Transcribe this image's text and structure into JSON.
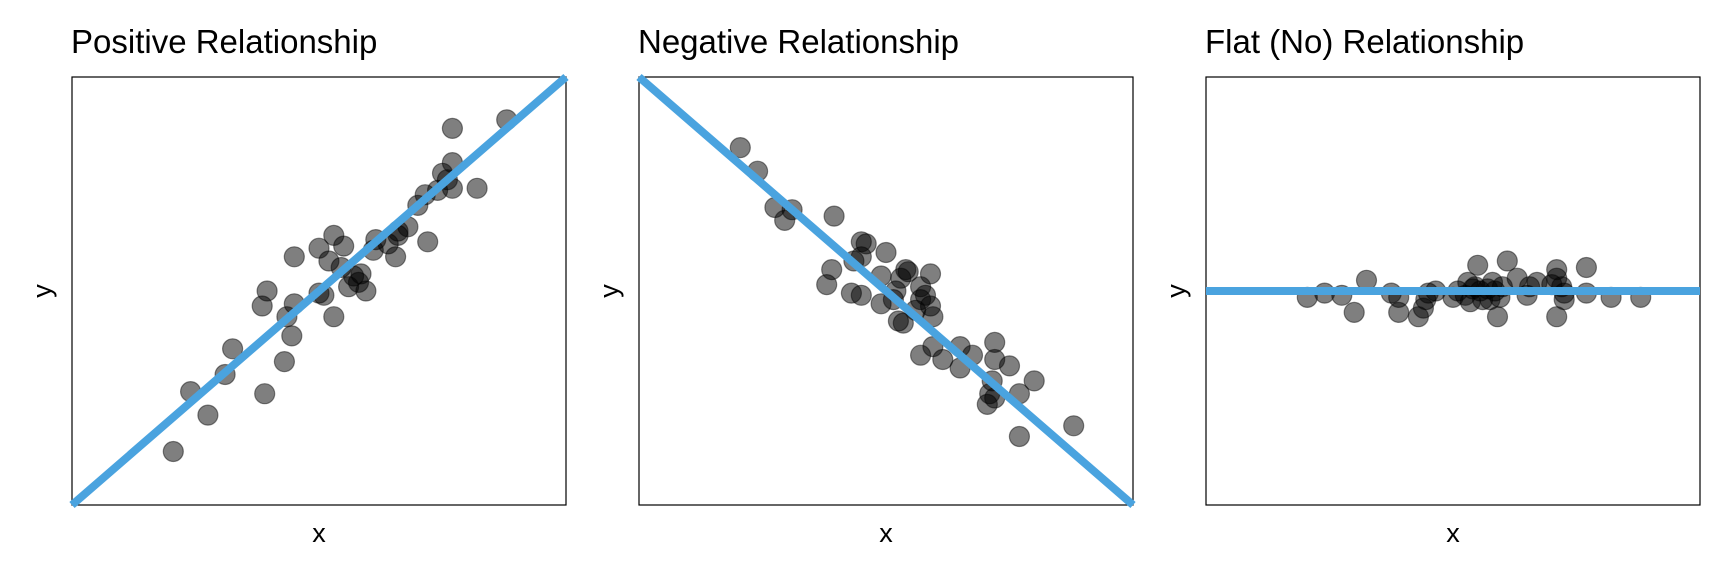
{
  "style": {
    "point_color": "#000000",
    "point_opacity": 0.5,
    "fit_line_color": "#4aa3df"
  },
  "chart_data": [
    {
      "type": "scatter",
      "title": "Positive Relationship",
      "xlabel": "x",
      "ylabel": "y",
      "xlim": [
        0,
        100
      ],
      "ylim": [
        0,
        100
      ],
      "grid": false,
      "axis_ticks": false,
      "fit_line": {
        "x": [
          0,
          100
        ],
        "y": [
          0,
          100
        ]
      },
      "points": [
        {
          "x": 20.5,
          "y": 12.5
        },
        {
          "x": 27.5,
          "y": 21
        },
        {
          "x": 24,
          "y": 26.5
        },
        {
          "x": 31,
          "y": 30.5
        },
        {
          "x": 32.5,
          "y": 36.5
        },
        {
          "x": 39,
          "y": 26
        },
        {
          "x": 43,
          "y": 33.5
        },
        {
          "x": 44.5,
          "y": 39.5
        },
        {
          "x": 43.5,
          "y": 44
        },
        {
          "x": 38.5,
          "y": 46.5
        },
        {
          "x": 39.5,
          "y": 50
        },
        {
          "x": 45,
          "y": 47
        },
        {
          "x": 50,
          "y": 49.5
        },
        {
          "x": 53,
          "y": 44
        },
        {
          "x": 51,
          "y": 49
        },
        {
          "x": 45,
          "y": 58
        },
        {
          "x": 50,
          "y": 60
        },
        {
          "x": 52,
          "y": 57
        },
        {
          "x": 53,
          "y": 63
        },
        {
          "x": 55,
          "y": 60.5
        },
        {
          "x": 57,
          "y": 53.5
        },
        {
          "x": 56,
          "y": 51
        },
        {
          "x": 58,
          "y": 52
        },
        {
          "x": 58.5,
          "y": 54
        },
        {
          "x": 59.5,
          "y": 50
        },
        {
          "x": 54.5,
          "y": 55.5
        },
        {
          "x": 61,
          "y": 59.5
        },
        {
          "x": 61.5,
          "y": 62
        },
        {
          "x": 64,
          "y": 61
        },
        {
          "x": 66,
          "y": 64
        },
        {
          "x": 68,
          "y": 65
        },
        {
          "x": 65.5,
          "y": 58
        },
        {
          "x": 70,
          "y": 70
        },
        {
          "x": 71.5,
          "y": 72.5
        },
        {
          "x": 74,
          "y": 73.5
        },
        {
          "x": 75,
          "y": 77.5
        },
        {
          "x": 76,
          "y": 76
        },
        {
          "x": 72,
          "y": 61.5
        },
        {
          "x": 77,
          "y": 74
        },
        {
          "x": 77,
          "y": 80
        },
        {
          "x": 77,
          "y": 88
        },
        {
          "x": 82,
          "y": 74
        },
        {
          "x": 88,
          "y": 90
        },
        {
          "x": 66,
          "y": 63
        }
      ]
    },
    {
      "type": "scatter",
      "title": "Negative Relationship",
      "xlabel": "x",
      "ylabel": "y",
      "xlim": [
        0,
        100
      ],
      "ylim": [
        0,
        100
      ],
      "grid": false,
      "axis_ticks": false,
      "fit_line": {
        "x": [
          0,
          100
        ],
        "y": [
          100,
          0
        ]
      },
      "points": [
        {
          "x": 20.5,
          "y": 83.5
        },
        {
          "x": 24,
          "y": 78
        },
        {
          "x": 27.5,
          "y": 69.5
        },
        {
          "x": 29.5,
          "y": 66.5
        },
        {
          "x": 31,
          "y": 69
        },
        {
          "x": 39.5,
          "y": 67.5
        },
        {
          "x": 45,
          "y": 61.5
        },
        {
          "x": 46,
          "y": 61
        },
        {
          "x": 50,
          "y": 59
        },
        {
          "x": 45,
          "y": 58
        },
        {
          "x": 39,
          "y": 55
        },
        {
          "x": 43.5,
          "y": 57
        },
        {
          "x": 54,
          "y": 55
        },
        {
          "x": 54.5,
          "y": 54.5
        },
        {
          "x": 59,
          "y": 54
        },
        {
          "x": 38,
          "y": 51.5
        },
        {
          "x": 43,
          "y": 49.5
        },
        {
          "x": 45,
          "y": 49
        },
        {
          "x": 49,
          "y": 53.5
        },
        {
          "x": 53,
          "y": 53
        },
        {
          "x": 52,
          "y": 50
        },
        {
          "x": 57,
          "y": 51
        },
        {
          "x": 49,
          "y": 47
        },
        {
          "x": 51.5,
          "y": 48
        },
        {
          "x": 56,
          "y": 45.5
        },
        {
          "x": 57,
          "y": 48
        },
        {
          "x": 58,
          "y": 49
        },
        {
          "x": 59,
          "y": 46.5
        },
        {
          "x": 53.5,
          "y": 42.5
        },
        {
          "x": 59.5,
          "y": 44
        },
        {
          "x": 52.5,
          "y": 43
        },
        {
          "x": 59.5,
          "y": 37
        },
        {
          "x": 57,
          "y": 35
        },
        {
          "x": 61.5,
          "y": 34
        },
        {
          "x": 65,
          "y": 37
        },
        {
          "x": 67.5,
          "y": 35
        },
        {
          "x": 65,
          "y": 32
        },
        {
          "x": 72,
          "y": 38
        },
        {
          "x": 72,
          "y": 34
        },
        {
          "x": 71.5,
          "y": 29
        },
        {
          "x": 71,
          "y": 26
        },
        {
          "x": 72,
          "y": 25
        },
        {
          "x": 70.5,
          "y": 23.5
        },
        {
          "x": 77,
          "y": 26
        },
        {
          "x": 80,
          "y": 29
        },
        {
          "x": 77,
          "y": 16
        },
        {
          "x": 88,
          "y": 18.5
        },
        {
          "x": 75,
          "y": 32.5
        }
      ]
    },
    {
      "type": "scatter",
      "title": "Flat (No) Relationship",
      "xlabel": "x",
      "ylabel": "y",
      "xlim": [
        0,
        100
      ],
      "ylim": [
        0,
        100
      ],
      "grid": false,
      "axis_ticks": false,
      "fit_line": {
        "x": [
          0,
          100
        ],
        "y": [
          50,
          50
        ]
      },
      "points": [
        {
          "x": 20.5,
          "y": 48.5
        },
        {
          "x": 24,
          "y": 49.5
        },
        {
          "x": 27.5,
          "y": 49
        },
        {
          "x": 30,
          "y": 45
        },
        {
          "x": 32.5,
          "y": 52.5
        },
        {
          "x": 37.5,
          "y": 49.5
        },
        {
          "x": 39,
          "y": 48.5
        },
        {
          "x": 39,
          "y": 45
        },
        {
          "x": 43,
          "y": 44
        },
        {
          "x": 44,
          "y": 46
        },
        {
          "x": 45,
          "y": 49.5
        },
        {
          "x": 46.5,
          "y": 50
        },
        {
          "x": 44.5,
          "y": 48
        },
        {
          "x": 50,
          "y": 48.5
        },
        {
          "x": 51,
          "y": 50
        },
        {
          "x": 52.5,
          "y": 49
        },
        {
          "x": 53,
          "y": 52
        },
        {
          "x": 53.5,
          "y": 47.5
        },
        {
          "x": 54.5,
          "y": 51
        },
        {
          "x": 55,
          "y": 56
        },
        {
          "x": 55.5,
          "y": 50
        },
        {
          "x": 56,
          "y": 48
        },
        {
          "x": 57,
          "y": 50.5
        },
        {
          "x": 57.5,
          "y": 48
        },
        {
          "x": 58,
          "y": 52
        },
        {
          "x": 58.5,
          "y": 50
        },
        {
          "x": 59.5,
          "y": 48.5
        },
        {
          "x": 60,
          "y": 51
        },
        {
          "x": 59,
          "y": 44
        },
        {
          "x": 61,
          "y": 57
        },
        {
          "x": 63,
          "y": 53
        },
        {
          "x": 65,
          "y": 49
        },
        {
          "x": 65.5,
          "y": 51
        },
        {
          "x": 67,
          "y": 52
        },
        {
          "x": 70,
          "y": 51.5
        },
        {
          "x": 71,
          "y": 53
        },
        {
          "x": 72,
          "y": 51
        },
        {
          "x": 72.5,
          "y": 49.5
        },
        {
          "x": 72.5,
          "y": 48
        },
        {
          "x": 71,
          "y": 55
        },
        {
          "x": 71,
          "y": 44
        },
        {
          "x": 77,
          "y": 55.5
        },
        {
          "x": 77,
          "y": 49.5
        },
        {
          "x": 82,
          "y": 48.5
        },
        {
          "x": 88,
          "y": 48.5
        },
        {
          "x": 54,
          "y": 50.5
        }
      ]
    }
  ]
}
